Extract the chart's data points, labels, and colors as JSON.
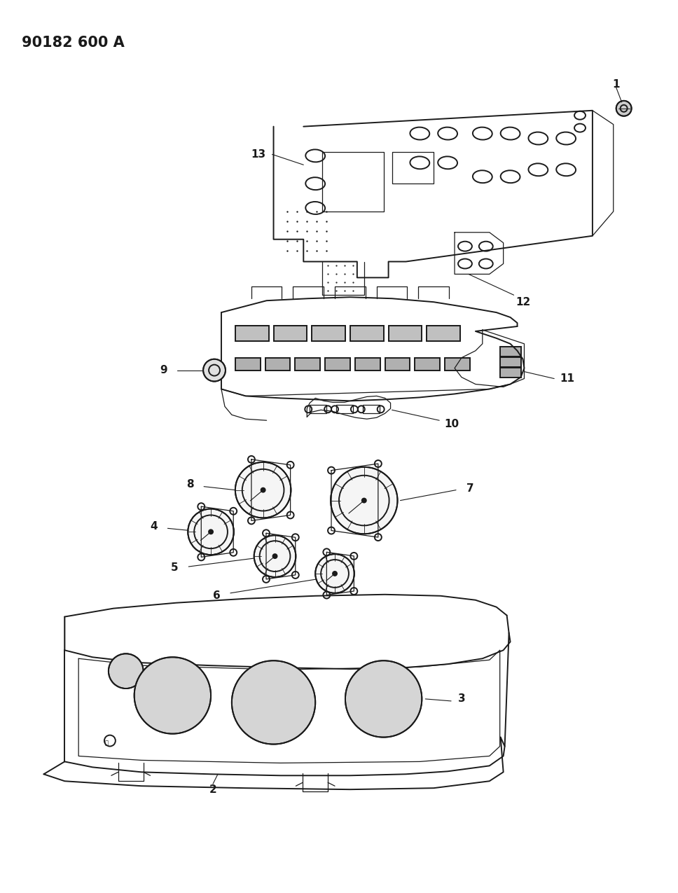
{
  "title": "90182 600 A",
  "title_fontsize": 15,
  "bg_color": "#ffffff",
  "line_color": "#1a1a1a",
  "label_fontsize": 11,
  "fig_w": 9.68,
  "fig_h": 12.75,
  "dpi": 100
}
